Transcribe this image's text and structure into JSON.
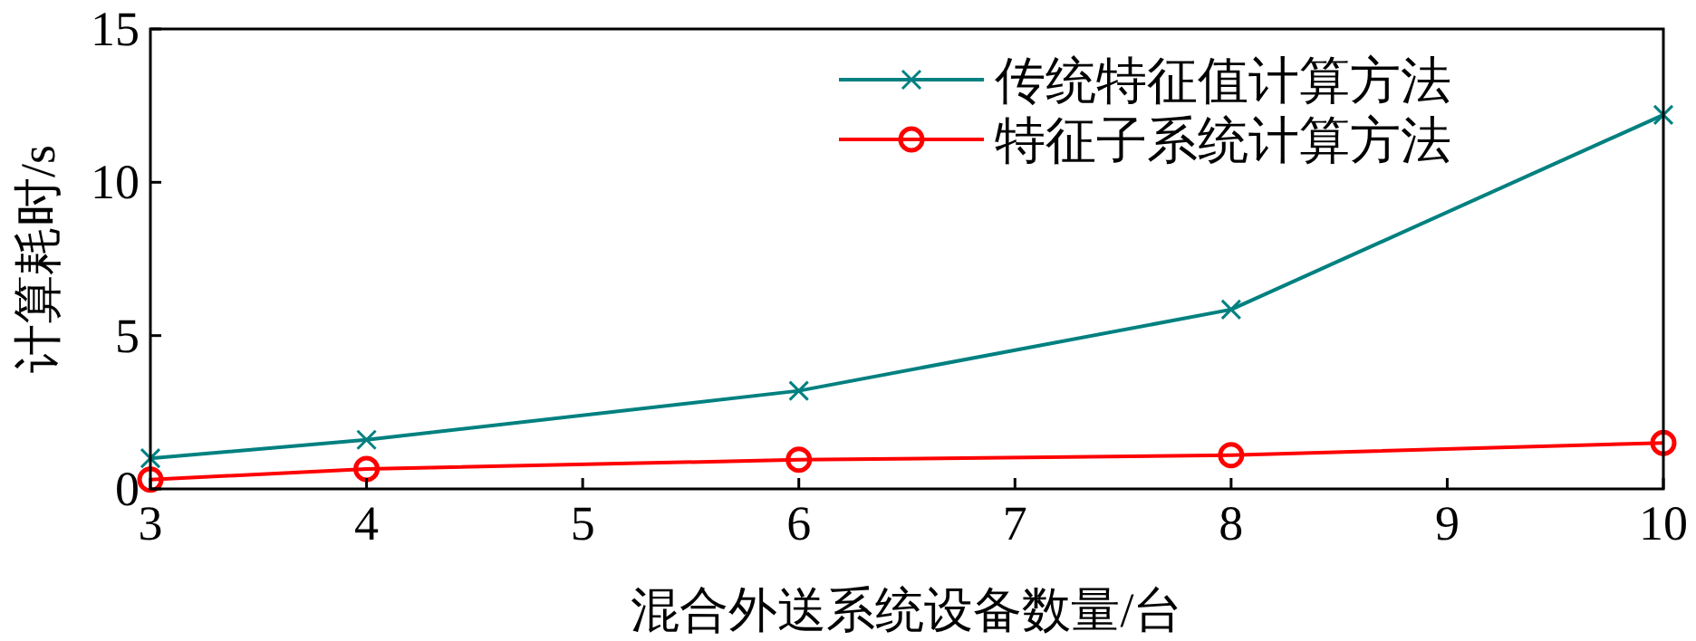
{
  "chart_data": {
    "type": "line",
    "xlabel": "混合外送系统设备数量/台",
    "ylabel": "计算耗时/s",
    "x": [
      3,
      4,
      6,
      8,
      10
    ],
    "series": [
      {
        "name": "传统特征值计算方法",
        "color": "#008080",
        "marker": "cross",
        "values": [
          1.0,
          1.6,
          3.2,
          5.85,
          12.2
        ]
      },
      {
        "name": "特征子系统计算方法",
        "color": "#ff0000",
        "marker": "circle",
        "values": [
          0.3,
          0.65,
          0.95,
          1.1,
          1.5
        ]
      }
    ],
    "xlim": [
      3,
      10
    ],
    "xticks": [
      3,
      4,
      5,
      6,
      7,
      8,
      9,
      10
    ],
    "ylim": [
      0,
      15
    ],
    "yticks": [
      0,
      5,
      10,
      15
    ],
    "legend": "top right",
    "grid": false,
    "line_style": "solid"
  }
}
